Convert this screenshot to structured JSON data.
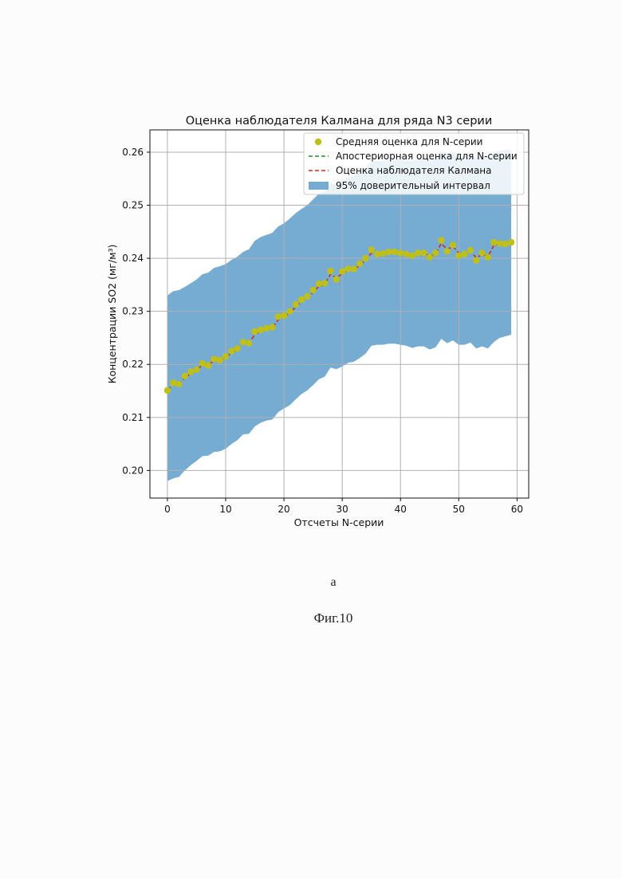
{
  "caption": {
    "panel": "а",
    "figure": "Фиг.10"
  },
  "chart_data": {
    "type": "scatter",
    "title": "Оценка наблюдателя Калмана для ряда N3 серии",
    "xlabel": "Отсчеты N-серии",
    "ylabel": "Концентрации SO2 (мг/м³)",
    "xlim": [
      -3,
      62
    ],
    "ylim": [
      0.1948,
      0.2642
    ],
    "xticks": [
      0,
      10,
      20,
      30,
      40,
      50,
      60
    ],
    "yticks": [
      0.2,
      0.21,
      0.22,
      0.23,
      0.24,
      0.25,
      0.26
    ],
    "grid": true,
    "legend_position": "top-right",
    "colors": {
      "points": "#bfbf19",
      "posterior": "#2a8a2a",
      "kalman": "#d62728",
      "band": "#76abd2"
    },
    "legend": [
      "Средняя оценка для N-серии",
      "Апостериорная оценка для N-серии",
      "Оценка наблюдателя Калмана",
      "95% доверительный интервал"
    ],
    "x": [
      0,
      1,
      2,
      3,
      4,
      5,
      6,
      7,
      8,
      9,
      10,
      11,
      12,
      13,
      14,
      15,
      16,
      17,
      18,
      19,
      20,
      21,
      22,
      23,
      24,
      25,
      26,
      27,
      28,
      29,
      30,
      31,
      32,
      33,
      34,
      35,
      36,
      37,
      38,
      39,
      40,
      41,
      42,
      43,
      44,
      45,
      46,
      47,
      48,
      49,
      50,
      51,
      52,
      53,
      54,
      55,
      56,
      57,
      58,
      59
    ],
    "series": [
      {
        "name": "Средняя оценка для N-серии",
        "values": [
          0.2151,
          0.2165,
          0.2163,
          0.2178,
          0.2186,
          0.219,
          0.2202,
          0.2198,
          0.221,
          0.2208,
          0.2215,
          0.2225,
          0.223,
          0.2242,
          0.224,
          0.2262,
          0.2265,
          0.2268,
          0.227,
          0.229,
          0.2292,
          0.23,
          0.2313,
          0.2322,
          0.2328,
          0.234,
          0.2352,
          0.2353,
          0.2376,
          0.236,
          0.2375,
          0.238,
          0.238,
          0.239,
          0.24,
          0.2416,
          0.2408,
          0.2409,
          0.2412,
          0.2412,
          0.241,
          0.2408,
          0.2405,
          0.241,
          0.241,
          0.2402,
          0.241,
          0.2434,
          0.2413,
          0.2425,
          0.2405,
          0.2408,
          0.2415,
          0.2396,
          0.241,
          0.2402,
          0.243,
          0.2428,
          0.2427,
          0.243
        ]
      },
      {
        "name": "Апостериорная оценка для N-серии",
        "values": [
          0.2152,
          0.2161,
          0.2164,
          0.2174,
          0.2183,
          0.2189,
          0.2199,
          0.2199,
          0.2207,
          0.2208,
          0.2213,
          0.2222,
          0.2228,
          0.2239,
          0.224,
          0.2256,
          0.2263,
          0.2267,
          0.2269,
          0.2284,
          0.229,
          0.2297,
          0.2308,
          0.2318,
          0.2325,
          0.2336,
          0.2347,
          0.2351,
          0.237,
          0.2363,
          0.2371,
          0.2378,
          0.2379,
          0.2387,
          0.2396,
          0.241,
          0.2409,
          0.2409,
          0.2411,
          0.2412,
          0.2411,
          0.2409,
          0.2406,
          0.2409,
          0.241,
          0.2404,
          0.2408,
          0.2428,
          0.2417,
          0.2422,
          0.241,
          0.2409,
          0.2413,
          0.2401,
          0.2407,
          0.2403,
          0.2424,
          0.2427,
          0.2427,
          0.2429
        ]
      },
      {
        "name": "Оценка наблюдателя Калмана",
        "values": [
          0.2152,
          0.2161,
          0.2164,
          0.2174,
          0.2183,
          0.2189,
          0.2199,
          0.2199,
          0.2207,
          0.2208,
          0.2213,
          0.2222,
          0.2228,
          0.2239,
          0.224,
          0.2256,
          0.2263,
          0.2267,
          0.2269,
          0.2284,
          0.229,
          0.2297,
          0.2308,
          0.2318,
          0.2325,
          0.2336,
          0.2347,
          0.2351,
          0.237,
          0.2363,
          0.2371,
          0.2378,
          0.2379,
          0.2387,
          0.2396,
          0.241,
          0.2409,
          0.2409,
          0.2411,
          0.2412,
          0.2411,
          0.2409,
          0.2406,
          0.2409,
          0.241,
          0.2404,
          0.2408,
          0.2428,
          0.2417,
          0.2422,
          0.241,
          0.2409,
          0.2413,
          0.2401,
          0.2407,
          0.2403,
          0.2424,
          0.2427,
          0.2427,
          0.2429
        ]
      },
      {
        "name": "95% доверительный интервал",
        "upper": [
          0.233,
          0.2338,
          0.234,
          0.2346,
          0.2353,
          0.236,
          0.237,
          0.2373,
          0.2382,
          0.2385,
          0.2389,
          0.2397,
          0.2403,
          0.2412,
          0.2417,
          0.2433,
          0.244,
          0.2444,
          0.2448,
          0.246,
          0.2466,
          0.2475,
          0.2485,
          0.2493,
          0.25,
          0.2511,
          0.2522,
          0.2526,
          0.2541,
          0.2539,
          0.2546,
          0.2553,
          0.2555,
          0.2562,
          0.2571,
          0.2583,
          0.2583,
          0.2584,
          0.2586,
          0.2587,
          0.2587,
          0.2586,
          0.2584,
          0.2586,
          0.2588,
          0.2584,
          0.2587,
          0.2602,
          0.2597,
          0.26,
          0.2592,
          0.2592,
          0.2596,
          0.2589,
          0.2593,
          0.2591,
          0.26,
          0.2603,
          0.2604,
          0.2605
        ],
        "lower": [
          0.198,
          0.1985,
          0.1988,
          0.2,
          0.201,
          0.2018,
          0.2027,
          0.2028,
          0.2035,
          0.2036,
          0.2041,
          0.205,
          0.2057,
          0.2068,
          0.2069,
          0.2083,
          0.209,
          0.2094,
          0.2096,
          0.211,
          0.2117,
          0.2123,
          0.2134,
          0.2144,
          0.2151,
          0.2161,
          0.2172,
          0.2177,
          0.2194,
          0.2191,
          0.2196,
          0.2203,
          0.2205,
          0.2212,
          0.222,
          0.2235,
          0.2237,
          0.2237,
          0.2239,
          0.2239,
          0.2237,
          0.2235,
          0.2231,
          0.2234,
          0.2234,
          0.2228,
          0.2232,
          0.2248,
          0.224,
          0.2245,
          0.2237,
          0.2237,
          0.2241,
          0.223,
          0.2234,
          0.223,
          0.2242,
          0.225,
          0.2253,
          0.2256
        ]
      }
    ]
  }
}
